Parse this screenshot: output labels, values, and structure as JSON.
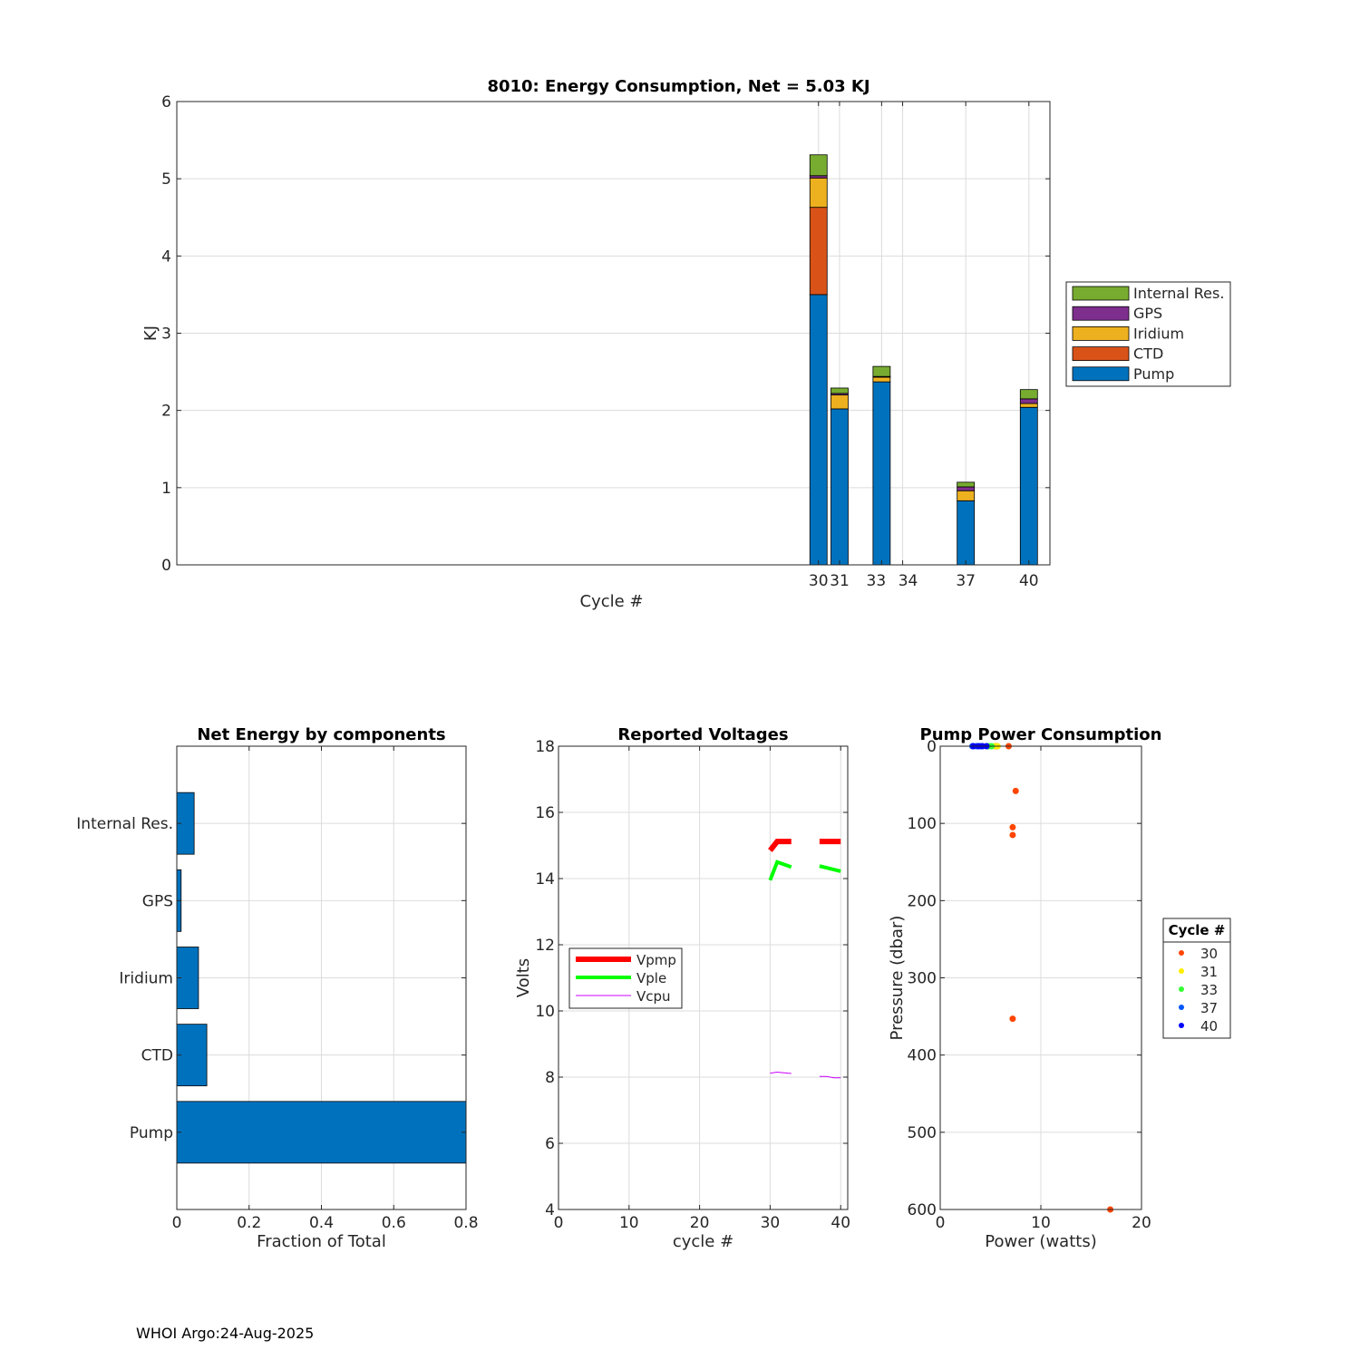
{
  "footer": "WHOI Argo:24-Aug-2025",
  "chart_data": [
    {
      "id": "energy",
      "type": "bar",
      "stacked": true,
      "title": "8010: Energy Consumption,  Net =   5.03 KJ",
      "xlabel": "Cycle #",
      "ylabel": "KJ",
      "xlim": [
        -0.5,
        41
      ],
      "ylim": [
        0,
        6
      ],
      "yticks": [
        0,
        1,
        2,
        3,
        4,
        5,
        6
      ],
      "xticks": [
        30,
        31,
        33,
        34,
        37,
        40
      ],
      "xtick_labels": [
        "30",
        "31",
        "33",
        "34",
        "37",
        "40"
      ],
      "grid": true,
      "legend_position": "outside-right",
      "categories": [
        30,
        31,
        33,
        37,
        40
      ],
      "series": [
        {
          "name": "Pump",
          "color": "#0072BD",
          "values": [
            3.5,
            2.02,
            2.37,
            0.83,
            2.04
          ]
        },
        {
          "name": "CTD",
          "color": "#D95319",
          "values": [
            1.13,
            0,
            0,
            0,
            0
          ]
        },
        {
          "name": "Iridium",
          "color": "#EDB120",
          "values": [
            0.38,
            0.18,
            0.06,
            0.13,
            0.05
          ]
        },
        {
          "name": "GPS",
          "color": "#7E2F8E",
          "values": [
            0.03,
            0.02,
            0.01,
            0.05,
            0.06
          ]
        },
        {
          "name": "Internal Res.",
          "color": "#77AC30",
          "values": [
            0.27,
            0.07,
            0.13,
            0.06,
            0.12
          ]
        }
      ],
      "legend": [
        "Internal Res.",
        "GPS",
        "Iridium",
        "CTD",
        "Pump"
      ]
    },
    {
      "id": "fraction",
      "type": "bar",
      "orientation": "horizontal",
      "title": "Net Energy by components",
      "xlabel": "Fraction of Total",
      "ylabel": "",
      "xlim": [
        0,
        0.8
      ],
      "xticks": [
        0,
        0.2,
        0.4,
        0.6,
        0.8
      ],
      "xtick_labels": [
        "0",
        "0.2",
        "0.4",
        "0.6",
        "0.8"
      ],
      "categories": [
        "Pump",
        "CTD",
        "Iridium",
        "GPS",
        "Internal Res."
      ],
      "values": [
        0.8,
        0.083,
        0.06,
        0.012,
        0.048
      ],
      "color": "#0072BD",
      "grid": true
    },
    {
      "id": "voltages",
      "type": "line",
      "title": "Reported Voltages",
      "xlabel": "cycle #",
      "ylabel": "Volts",
      "xlim": [
        0,
        41
      ],
      "ylim": [
        4,
        18
      ],
      "xticks": [
        0,
        10,
        20,
        30,
        40
      ],
      "yticks": [
        4,
        6,
        8,
        10,
        12,
        14,
        16,
        18
      ],
      "grid": true,
      "legend_position": "middle-left",
      "series": [
        {
          "name": "Vpmp",
          "color": "#FF0000",
          "width": 6,
          "segments": [
            [
              [
                30,
                14.85
              ],
              [
                31,
                15.12
              ],
              [
                33,
                15.12
              ]
            ],
            [
              [
                37,
                15.12
              ],
              [
                40,
                15.12
              ]
            ]
          ]
        },
        {
          "name": "Vple",
          "color": "#00FF00",
          "width": 4,
          "segments": [
            [
              [
                30,
                13.95
              ],
              [
                31,
                14.5
              ],
              [
                33,
                14.35
              ]
            ],
            [
              [
                37,
                14.38
              ],
              [
                40,
                14.22
              ]
            ]
          ]
        },
        {
          "name": "Vcpu",
          "color": "#CC00FF",
          "width": 1,
          "segments": [
            [
              [
                30,
                8.12
              ],
              [
                31,
                8.15
              ],
              [
                32,
                8.13
              ],
              [
                33,
                8.11
              ]
            ],
            [
              [
                37,
                8.02
              ],
              [
                38,
                8.02
              ],
              [
                39,
                7.98
              ],
              [
                40,
                7.98
              ]
            ]
          ]
        }
      ]
    },
    {
      "id": "pump_power",
      "type": "scatter",
      "title": "Pump Power Consumption",
      "xlabel": "Power (watts)",
      "ylabel": "Pressure (dbar)",
      "xlim": [
        0,
        20
      ],
      "ylim": [
        0,
        600
      ],
      "y_reversed": true,
      "xticks": [
        0,
        10,
        20
      ],
      "yticks": [
        0,
        100,
        200,
        300,
        400,
        500,
        600
      ],
      "grid": true,
      "legend_title": "Cycle #",
      "legend_position": "outside-right",
      "series": [
        {
          "name": "30",
          "color": "#FF4500",
          "points": [
            [
              5.6,
              0
            ],
            [
              6.8,
              0
            ],
            [
              7.5,
              58
            ],
            [
              7.2,
              105
            ],
            [
              7.2,
              115
            ],
            [
              7.2,
              353
            ],
            [
              16.9,
              600
            ]
          ]
        },
        {
          "name": "31",
          "color": "#FFEE00",
          "points": [
            [
              5.4,
              0
            ],
            [
              5.7,
              0
            ]
          ]
        },
        {
          "name": "33",
          "color": "#33FF33",
          "points": [
            [
              4.8,
              0
            ],
            [
              5.1,
              0
            ]
          ]
        },
        {
          "name": "37",
          "color": "#0055FF",
          "points": [
            [
              3.2,
              0
            ],
            [
              3.6,
              0
            ],
            [
              4.0,
              0
            ]
          ]
        },
        {
          "name": "40",
          "color": "#0000FF",
          "points": [
            [
              3.3,
              0
            ],
            [
              3.8,
              0
            ],
            [
              4.2,
              0
            ],
            [
              4.6,
              0
            ]
          ]
        }
      ]
    }
  ]
}
